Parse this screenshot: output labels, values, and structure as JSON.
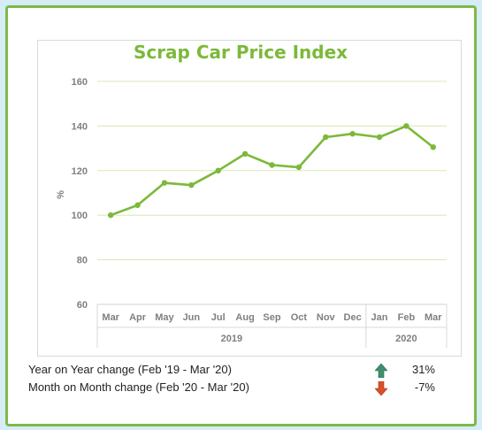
{
  "chart_data": {
    "type": "line",
    "title": "Scrap Car Price Index",
    "ylabel": "%",
    "xlabel": "",
    "ylim": [
      60,
      160
    ],
    "yticks": [
      60,
      80,
      100,
      120,
      140,
      160
    ],
    "grid": true,
    "legend": "none",
    "categories": [
      "Mar",
      "Apr",
      "May",
      "Jun",
      "Jul",
      "Aug",
      "Sep",
      "Oct",
      "Nov",
      "Dec",
      "Jan",
      "Feb",
      "Mar"
    ],
    "year_groups": [
      {
        "label": "2019",
        "count": 10
      },
      {
        "label": "2020",
        "count": 3
      }
    ],
    "series": [
      {
        "values": [
          100,
          104.5,
          114.5,
          113.5,
          120,
          127.5,
          122.5,
          121.5,
          135,
          136.5,
          135,
          140,
          130.5
        ]
      }
    ],
    "line_color": "#7cb93a"
  },
  "stats": [
    {
      "label": "Year on Year change (Feb '19 - Mar '20)",
      "value": "31%",
      "direction": "up",
      "icon": "up-arrow-icon",
      "color": "#3f8f6e"
    },
    {
      "label": "Month on Month change (Feb '20 - Mar '20)",
      "value": "-7%",
      "direction": "down",
      "icon": "down-arrow-icon",
      "color": "#d9502a"
    }
  ]
}
